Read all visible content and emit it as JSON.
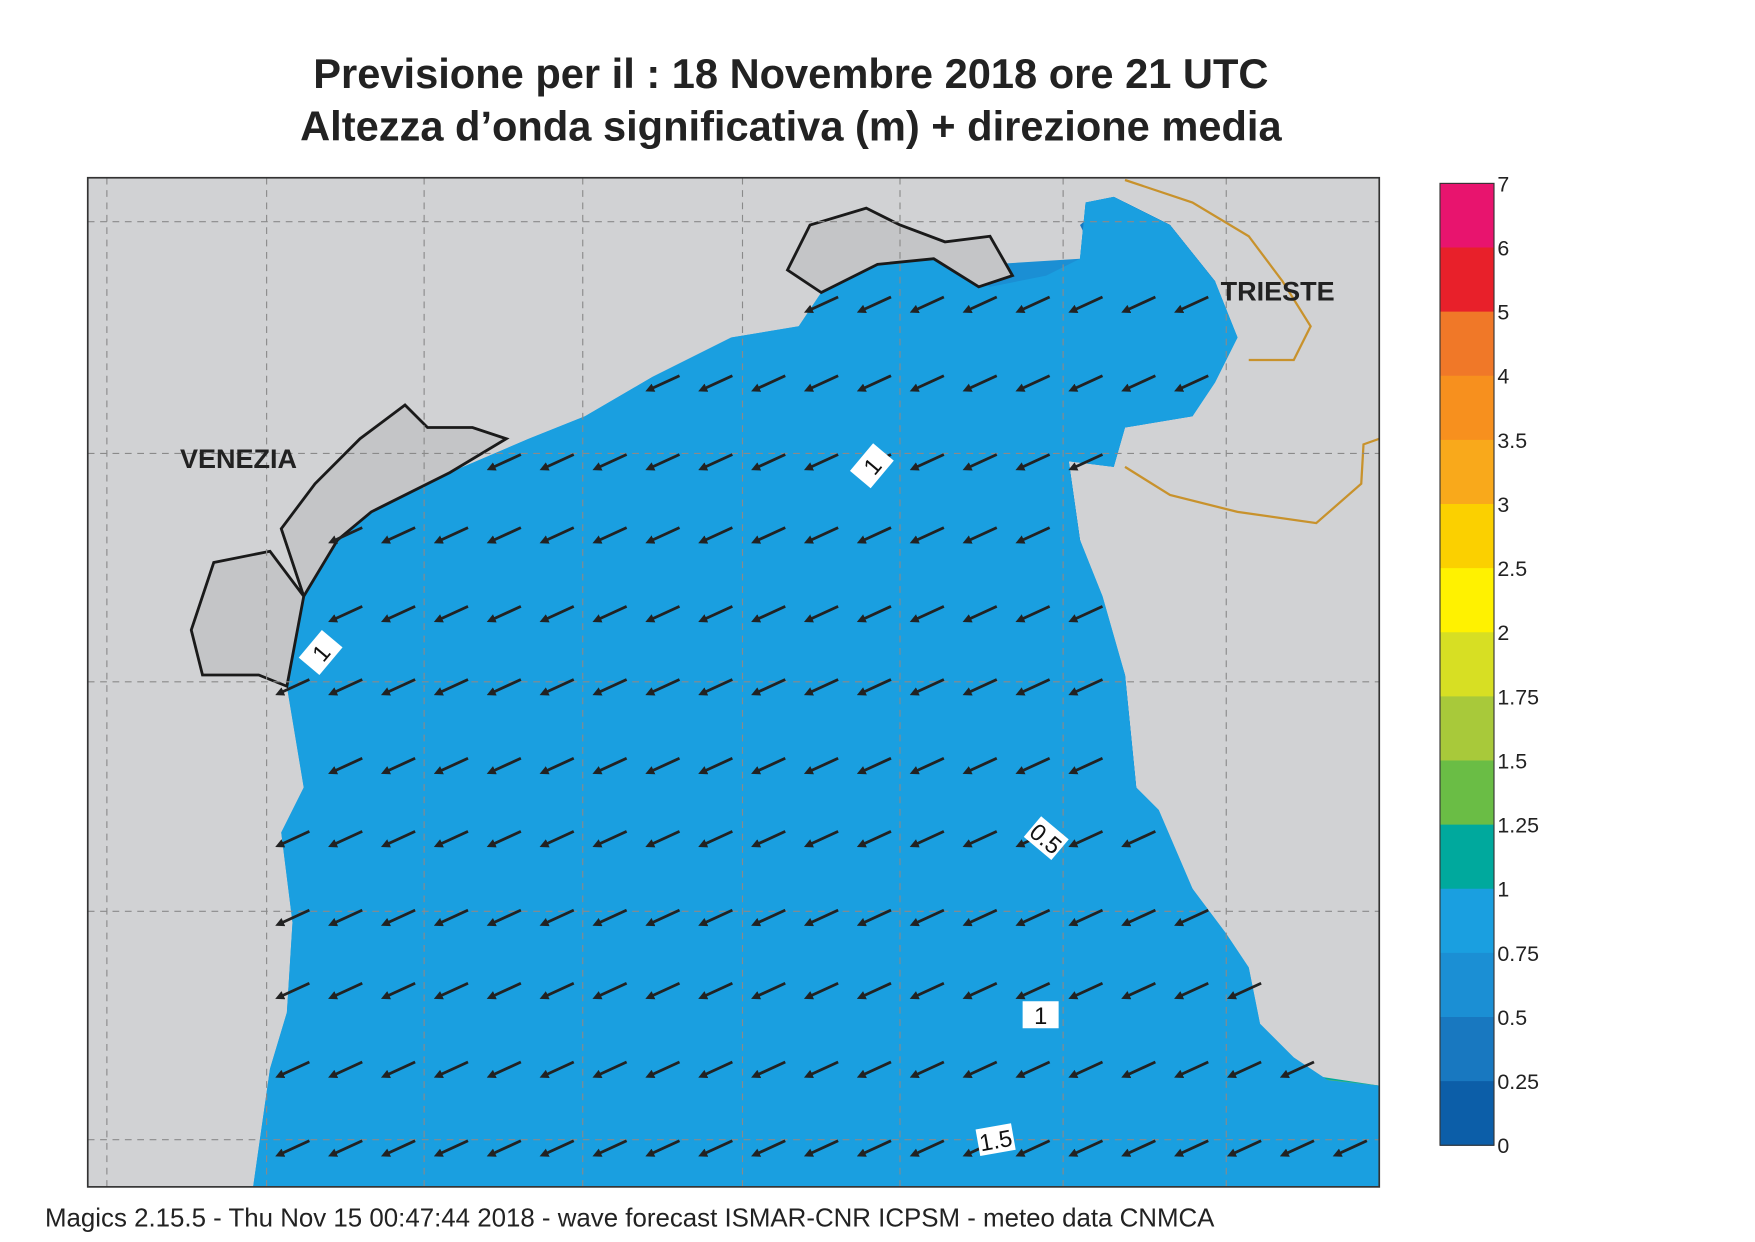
{
  "title": [
    "Previsione per il  :  18 Novembre  2018   ore 21 UTC",
    "Altezza d’onda significativa (m) + direzione media"
  ],
  "map_labels": [
    "VENEZIA",
    "TRIESTE"
  ],
  "contour_labels": [
    "1",
    "1",
    "0.5",
    "1",
    "1.5"
  ],
  "colorbar": {
    "labels": [
      "7",
      "6",
      "5",
      "4",
      "3.5",
      "3",
      "2.5",
      "2",
      "1.75",
      "1.5",
      "1.25",
      "1",
      "0.75",
      "0.5",
      "0.25",
      "0"
    ],
    "colors": [
      "#e8146e",
      "#e8202a",
      "#f07828",
      "#f7901e",
      "#f9a91b",
      "#fbd000",
      "#fff200",
      "#d7df23",
      "#a8c93a",
      "#6abd45",
      "#00a99d",
      "#1a9fe0",
      "#1b8fd4",
      "#1878c0",
      "#0c5ea8"
    ]
  },
  "footer": "Magics 2.15.5 - Thu Nov 15 00:47:44 2018 - wave forecast  ISMAR-CNR  ICPSM - meteo data   CNMCA"
}
